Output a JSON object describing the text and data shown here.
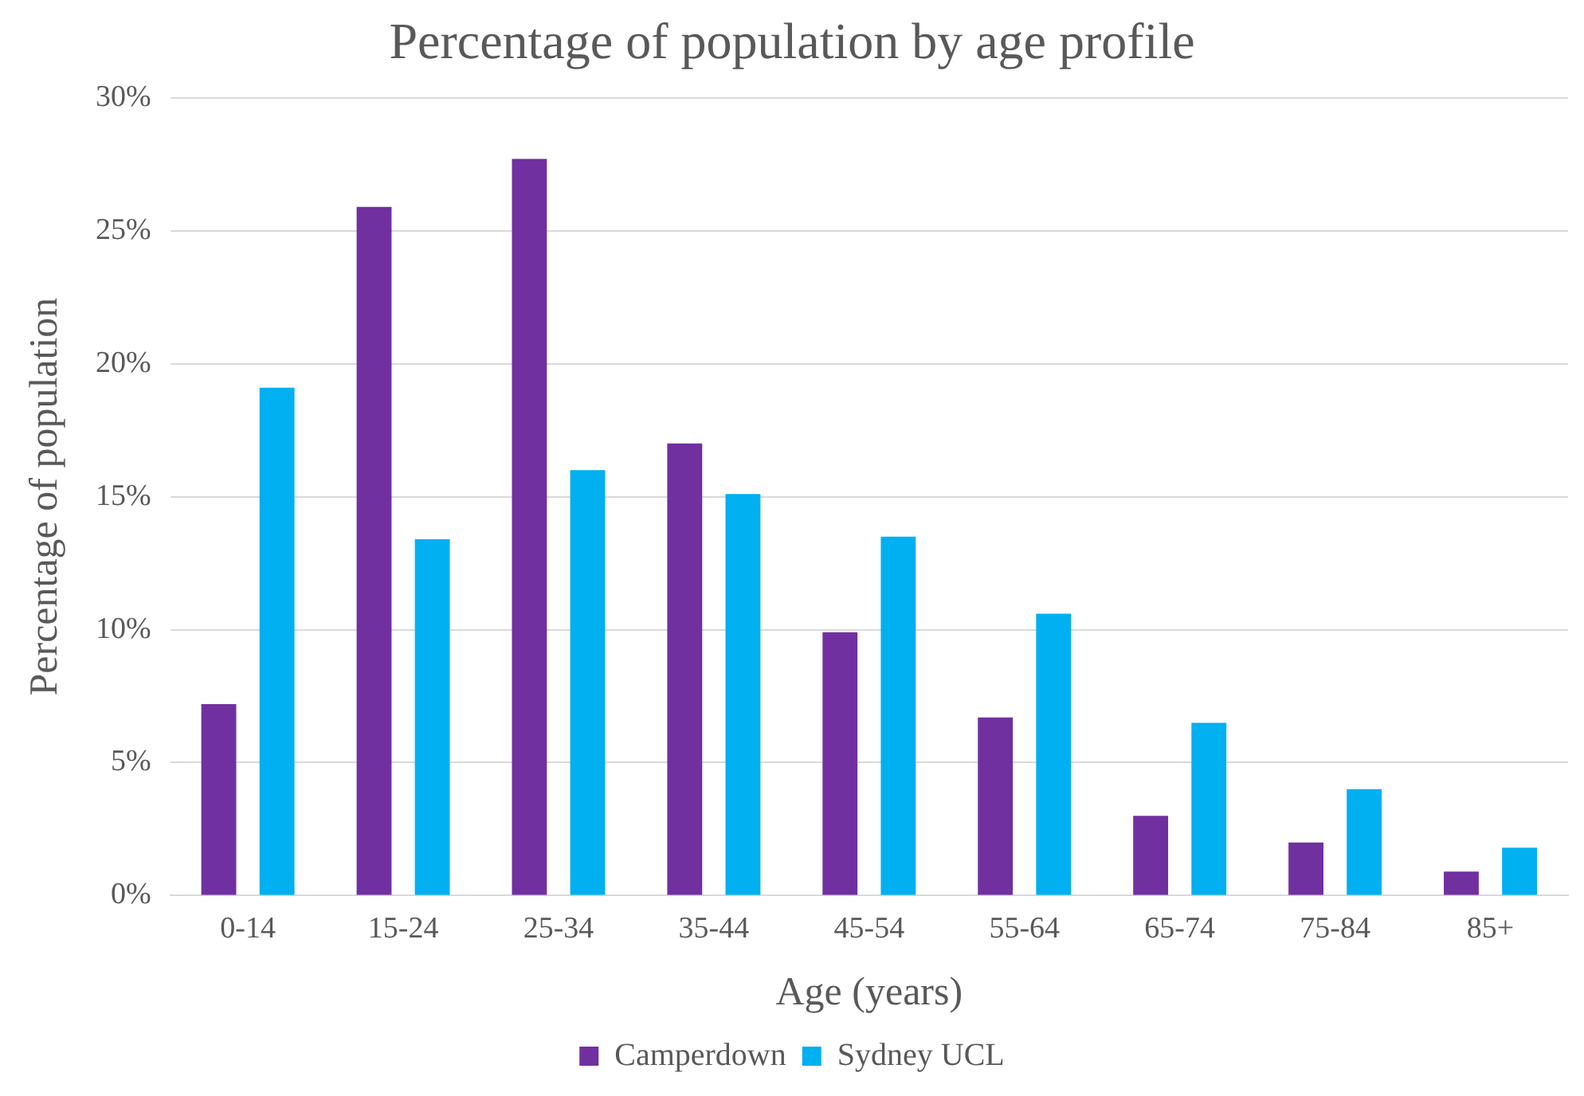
{
  "chart_data": {
    "type": "bar",
    "title": "Percentage of population by age profile",
    "xlabel": "Age (years)",
    "ylabel": "Percentage of population",
    "categories": [
      "0-14",
      "15-24",
      "25-34",
      "35-44",
      "45-54",
      "55-64",
      "65-74",
      "75-84",
      "85+"
    ],
    "series": [
      {
        "name": "Camperdown",
        "color": "#7030a0",
        "values": [
          7.2,
          25.9,
          27.7,
          17.0,
          9.9,
          6.7,
          3.0,
          2.0,
          0.9
        ]
      },
      {
        "name": "Sydney UCL",
        "color": "#00b0f0",
        "values": [
          19.1,
          13.4,
          16.0,
          15.1,
          13.5,
          10.6,
          6.5,
          4.0,
          1.8
        ]
      }
    ],
    "ylim": [
      0,
      30
    ],
    "yticks": [
      {
        "value": 0,
        "label": "0%"
      },
      {
        "value": 5,
        "label": "5%"
      },
      {
        "value": 10,
        "label": "10%"
      },
      {
        "value": 15,
        "label": "15%"
      },
      {
        "value": 20,
        "label": "20%"
      },
      {
        "value": 25,
        "label": "25%"
      },
      {
        "value": 30,
        "label": "30%"
      }
    ],
    "grid": "y",
    "legend": "bottom"
  }
}
